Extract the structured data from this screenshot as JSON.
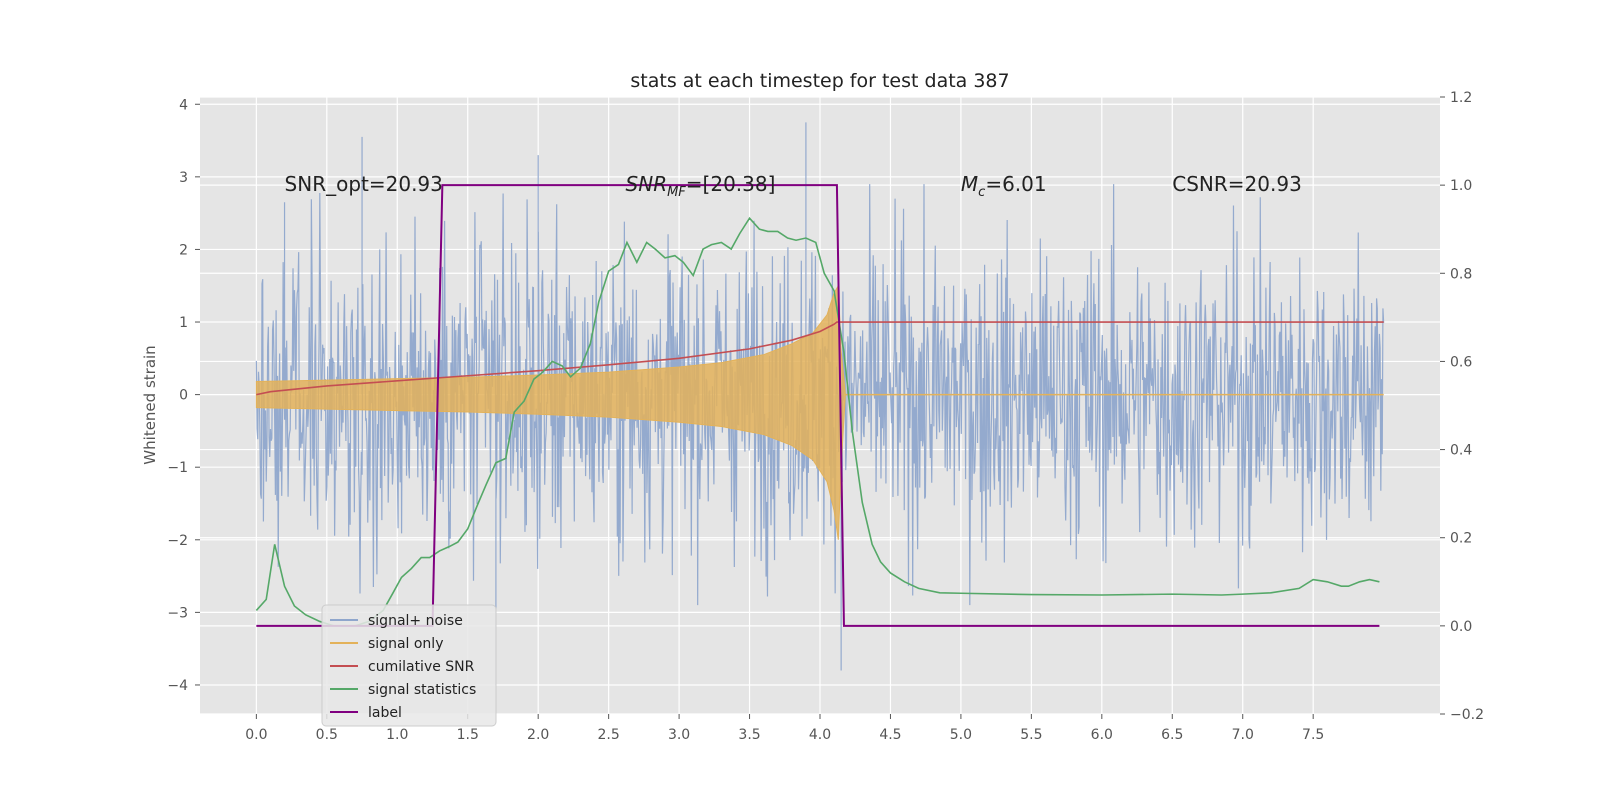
{
  "chart_data": {
    "type": "line",
    "title": "stats at each timestep for test data 387",
    "ylabel": "Whitened strain",
    "xlabel": "",
    "xlim": [
      -0.4,
      8.4
    ],
    "ylim_left": [
      -4.4,
      4.1
    ],
    "ylim_right": [
      -0.2,
      1.2
    ],
    "xticks": [
      "0.0",
      "0.5",
      "1.0",
      "1.5",
      "2.0",
      "2.5",
      "3.0",
      "3.5",
      "4.0",
      "4.5",
      "5.0",
      "5.5",
      "6.0",
      "6.5",
      "7.0",
      "7.5"
    ],
    "yticks_left": [
      "−4",
      "−3",
      "−2",
      "−1",
      "0",
      "1",
      "2",
      "3",
      "4"
    ],
    "yticks_right": [
      "−0.2",
      "0.0",
      "0.2",
      "0.4",
      "0.6",
      "0.8",
      "1.0",
      "1.2"
    ],
    "grid": true,
    "legend_position": "lower-left",
    "colors": {
      "signal_noise": "#8fa6cc",
      "signal_only": "#e3b25a",
      "cumulative_snr": "#c44e52",
      "signal_statistics": "#55a868",
      "label": "#800080",
      "plot_bg": "#e5e5e5",
      "grid": "#ffffff"
    },
    "annotations": [
      {
        "main": "SNR_opt=20.93",
        "sub": "",
        "tail": "",
        "x": 0.2
      },
      {
        "main": "SNR",
        "sub": "MF",
        "tail": "=[20.38]",
        "x": 2.62
      },
      {
        "main": "M",
        "sub": "c",
        "tail": "=6.01",
        "x": 5.0
      },
      {
        "main": "CSNR=20.93",
        "sub": "",
        "tail": "",
        "x": 6.5
      }
    ],
    "annotation_y": 2.9,
    "series": [
      {
        "name": "signal+ noise",
        "axis": "left",
        "style": "noise",
        "x_range": [
          0.0,
          8.0
        ],
        "envelope_typical": 1.7,
        "spikes": [
          [
            0.75,
            3.55
          ],
          [
            2.0,
            3.3
          ],
          [
            3.9,
            3.75
          ],
          [
            4.15,
            -3.8
          ],
          [
            1.7,
            -4.0
          ],
          [
            0.2,
            2.65
          ]
        ]
      },
      {
        "name": "signal only",
        "axis": "left",
        "style": "chirp_envelope",
        "x": [
          0.0,
          0.5,
          1.0,
          1.5,
          2.0,
          2.5,
          3.0,
          3.3,
          3.6,
          3.8,
          3.95,
          4.05,
          4.1,
          4.13,
          4.15,
          4.18,
          8.0
        ],
        "upper": [
          0.18,
          0.2,
          0.22,
          0.24,
          0.27,
          0.31,
          0.38,
          0.44,
          0.55,
          0.7,
          0.85,
          1.1,
          1.4,
          1.5,
          0.6,
          0.0,
          0.0
        ],
        "lower": [
          -0.18,
          -0.2,
          -0.22,
          -0.24,
          -0.27,
          -0.31,
          -0.38,
          -0.44,
          -0.55,
          -0.7,
          -0.9,
          -1.2,
          -1.6,
          -2.0,
          -1.0,
          0.0,
          0.0
        ]
      },
      {
        "name": "cumilative SNR",
        "axis": "left",
        "x": [
          0.0,
          0.1,
          0.5,
          1.0,
          1.5,
          2.0,
          2.5,
          3.0,
          3.5,
          3.8,
          4.0,
          4.1,
          4.12,
          8.0
        ],
        "y": [
          0.0,
          0.04,
          0.12,
          0.19,
          0.26,
          0.33,
          0.41,
          0.5,
          0.63,
          0.75,
          0.87,
          0.97,
          1.0,
          1.0
        ]
      },
      {
        "name": "signal statistics",
        "axis": "right",
        "x": [
          0.0,
          0.07,
          0.13,
          0.2,
          0.27,
          0.35,
          0.45,
          0.55,
          0.7,
          0.8,
          0.9,
          0.97,
          1.03,
          1.1,
          1.17,
          1.23,
          1.3,
          1.37,
          1.43,
          1.5,
          1.57,
          1.63,
          1.7,
          1.77,
          1.83,
          1.9,
          1.97,
          2.03,
          2.1,
          2.17,
          2.23,
          2.3,
          2.37,
          2.43,
          2.5,
          2.57,
          2.63,
          2.7,
          2.77,
          2.83,
          2.9,
          2.97,
          3.03,
          3.1,
          3.17,
          3.23,
          3.3,
          3.37,
          3.43,
          3.5,
          3.57,
          3.63,
          3.7,
          3.77,
          3.83,
          3.9,
          3.97,
          4.03,
          4.1,
          4.17,
          4.23,
          4.3,
          4.37,
          4.43,
          4.5,
          4.6,
          4.7,
          4.85,
          5.0,
          5.5,
          6.0,
          6.5,
          6.85,
          7.0,
          7.2,
          7.4,
          7.5,
          7.6,
          7.7,
          7.75,
          7.83,
          7.9,
          7.97
        ],
        "y": [
          0.035,
          0.06,
          0.185,
          0.09,
          0.045,
          0.025,
          0.01,
          0.0,
          0.0,
          0.01,
          0.035,
          0.075,
          0.11,
          0.13,
          0.155,
          0.155,
          0.17,
          0.18,
          0.19,
          0.22,
          0.275,
          0.32,
          0.37,
          0.38,
          0.485,
          0.51,
          0.56,
          0.575,
          0.6,
          0.59,
          0.565,
          0.585,
          0.64,
          0.735,
          0.805,
          0.82,
          0.87,
          0.825,
          0.87,
          0.855,
          0.835,
          0.84,
          0.825,
          0.795,
          0.855,
          0.865,
          0.87,
          0.855,
          0.89,
          0.925,
          0.9,
          0.895,
          0.895,
          0.88,
          0.875,
          0.88,
          0.87,
          0.8,
          0.76,
          0.62,
          0.44,
          0.28,
          0.185,
          0.145,
          0.12,
          0.1,
          0.085,
          0.075,
          0.074,
          0.071,
          0.07,
          0.072,
          0.07,
          0.072,
          0.075,
          0.085,
          0.105,
          0.1,
          0.09,
          0.09,
          0.1,
          0.105,
          0.1
        ]
      },
      {
        "name": "label",
        "axis": "right",
        "x": [
          0.0,
          1.25,
          1.32,
          4.12,
          4.17,
          7.97
        ],
        "y": [
          0.0,
          0.0,
          1.0,
          1.0,
          0.0,
          0.0
        ]
      }
    ]
  }
}
